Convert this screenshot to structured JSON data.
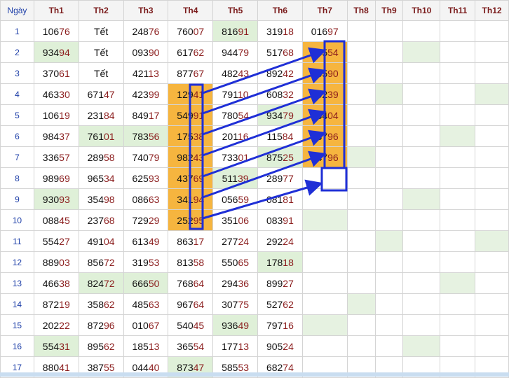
{
  "headers": [
    "Ngày",
    "Th1",
    "Th2",
    "Th3",
    "Th4",
    "Th5",
    "Th6",
    "Th7",
    "Th8",
    "Th9",
    "Th10",
    "Th11",
    "Th12"
  ],
  "rows": [
    {
      "day": "1",
      "cells": [
        "10676",
        "Tết",
        "24876",
        "76007",
        "81691",
        "31918",
        "01697",
        "",
        "",
        "",
        "",
        ""
      ]
    },
    {
      "day": "2",
      "cells": [
        "93494",
        "Tết",
        "09390",
        "61762",
        "94479",
        "51768",
        "53554",
        "",
        "",
        "",
        "",
        ""
      ]
    },
    {
      "day": "3",
      "cells": [
        "37061",
        "Tết",
        "42113",
        "87767",
        "48243",
        "89242",
        "86590",
        "",
        "",
        "",
        "",
        ""
      ]
    },
    {
      "day": "4",
      "cells": [
        "46330",
        "67147",
        "42399",
        "12941",
        "79110",
        "60832",
        "50239",
        "",
        "",
        "",
        "",
        ""
      ]
    },
    {
      "day": "5",
      "cells": [
        "10619",
        "23184",
        "84917",
        "54991",
        "78054",
        "93479",
        "68404",
        "",
        "",
        "",
        "",
        ""
      ]
    },
    {
      "day": "6",
      "cells": [
        "98437",
        "76101",
        "78356",
        "17538",
        "20116",
        "11584",
        "78796",
        "",
        "",
        "",
        "",
        ""
      ]
    },
    {
      "day": "7",
      "cells": [
        "33657",
        "28958",
        "74079",
        "98243",
        "73301",
        "87525",
        "84796",
        "",
        "",
        "",
        "",
        ""
      ]
    },
    {
      "day": "8",
      "cells": [
        "98969",
        "96534",
        "62593",
        "43769",
        "51139",
        "28977",
        "",
        "",
        "",
        "",
        "",
        ""
      ]
    },
    {
      "day": "9",
      "cells": [
        "93093",
        "35498",
        "08663",
        "34194",
        "05659",
        "08181",
        "",
        "",
        "",
        "",
        "",
        ""
      ]
    },
    {
      "day": "10",
      "cells": [
        "08845",
        "23768",
        "72929",
        "25295",
        "35106",
        "08391",
        "",
        "",
        "",
        "",
        "",
        ""
      ]
    },
    {
      "day": "11",
      "cells": [
        "55427",
        "49104",
        "61349",
        "86317",
        "27724",
        "29224",
        "",
        "",
        "",
        "",
        "",
        ""
      ]
    },
    {
      "day": "12",
      "cells": [
        "88903",
        "85672",
        "31953",
        "81358",
        "55065",
        "17818",
        "",
        "",
        "",
        "",
        "",
        ""
      ]
    },
    {
      "day": "13",
      "cells": [
        "46638",
        "82472",
        "66650",
        "76864",
        "29436",
        "89927",
        "",
        "",
        "",
        "",
        "",
        ""
      ]
    },
    {
      "day": "14",
      "cells": [
        "87219",
        "35862",
        "48563",
        "96764",
        "30775",
        "52762",
        "",
        "",
        "",
        "",
        "",
        ""
      ]
    },
    {
      "day": "15",
      "cells": [
        "20222",
        "87296",
        "01067",
        "54045",
        "93649",
        "79716",
        "",
        "",
        "",
        "",
        "",
        ""
      ]
    },
    {
      "day": "16",
      "cells": [
        "55431",
        "89562",
        "18513",
        "36554",
        "17713",
        "90524",
        "",
        "",
        "",
        "",
        "",
        ""
      ]
    },
    {
      "day": "17",
      "cells": [
        "88041",
        "38755",
        "04440",
        "87347",
        "58553",
        "68274",
        "",
        "",
        "",
        "",
        "",
        ""
      ]
    }
  ],
  "colors": {
    "green": "#dff0d8",
    "orange": "#f6b53f",
    "blue": "#1f2fd6",
    "red_digits": "#8b1d1d"
  }
}
